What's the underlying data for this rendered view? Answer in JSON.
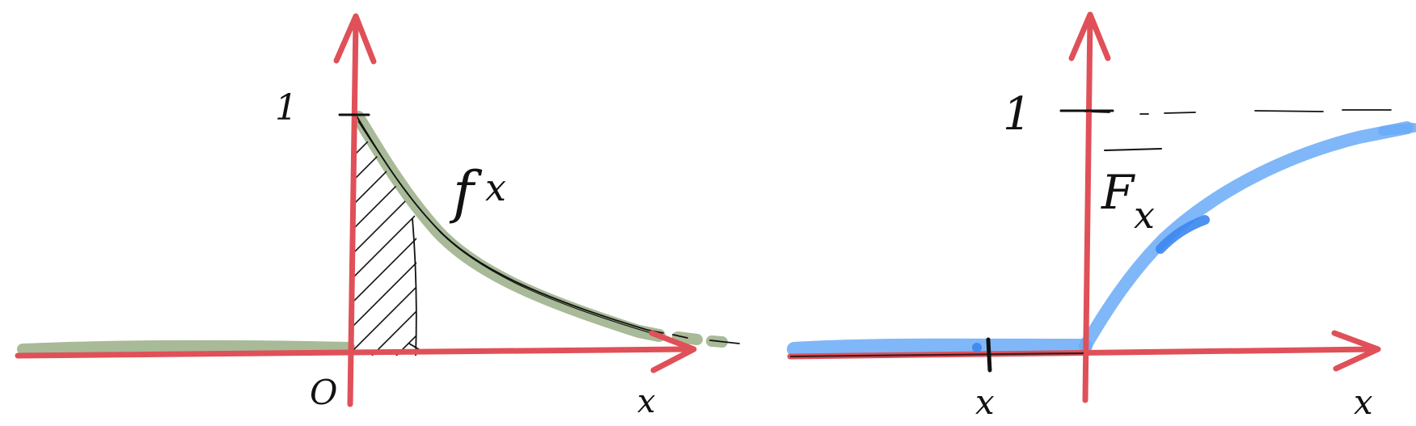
{
  "diagrams": [
    {
      "id": "density",
      "origin_label": "O",
      "y_tick_label": "1",
      "x_axis_label": "x",
      "curve_label": "f",
      "curve_label_subscript": "x",
      "colors": {
        "axis": "#e05058",
        "curve": "#9fb38c",
        "ink": "#111111",
        "hatch": "#111111"
      }
    },
    {
      "id": "cdf",
      "y_tick_label": "1",
      "x_axis_label": "x",
      "x_marker_label": "x",
      "curve_label": "F",
      "curve_label_subscript": "x",
      "colors": {
        "axis": "#e05058",
        "curve": "#6aaaf7",
        "ink": "#111111"
      }
    }
  ]
}
